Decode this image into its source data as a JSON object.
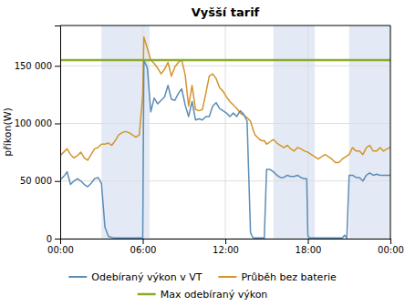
{
  "chart_data": {
    "type": "line",
    "title": "Vyšší tarif",
    "y_label": "příkon(W)",
    "xlim": [
      0,
      288
    ],
    "xticks": [
      {
        "value": 0,
        "label": "00:00"
      },
      {
        "value": 72,
        "label": "06:00"
      },
      {
        "value": 144,
        "label": "12:00"
      },
      {
        "value": 216,
        "label": "18:00"
      },
      {
        "value": 288,
        "label": "00:00"
      }
    ],
    "ylim": [
      0,
      185000
    ],
    "yticks": [
      0,
      {
        "value": 50000,
        "label": "50 000"
      },
      {
        "value": 100000,
        "label": "100 000"
      },
      {
        "value": 150000,
        "label": "150 000"
      }
    ],
    "grid": true,
    "legend": "bottom",
    "shaded_regions": {
      "color": "#ccd9ec",
      "ranges": [
        [
          36,
          78
        ],
        [
          186,
          222
        ],
        [
          252,
          288
        ]
      ]
    },
    "series": [
      {
        "name": "Odebíraný výkon v VT",
        "color": "#5b8db8",
        "x": [
          0,
          4,
          6,
          9,
          12,
          15,
          18,
          21,
          24,
          27,
          30,
          33,
          36,
          39,
          42,
          45,
          48,
          51,
          54,
          57,
          60,
          63,
          66,
          69,
          72,
          73,
          76,
          79,
          82,
          85,
          88,
          91,
          94,
          97,
          100,
          103,
          106,
          109,
          112,
          115,
          118,
          121,
          124,
          127,
          130,
          133,
          136,
          139,
          142,
          145,
          148,
          151,
          154,
          157,
          160,
          163,
          166,
          168,
          170,
          172,
          174,
          176,
          178,
          180,
          183,
          186,
          189,
          192,
          195,
          198,
          201,
          204,
          207,
          210,
          213,
          215,
          216,
          217,
          219,
          222,
          225,
          228,
          231,
          234,
          237,
          240,
          243,
          246,
          248,
          250,
          252,
          255,
          258,
          261,
          264,
          267,
          270,
          273,
          276,
          279,
          282,
          285,
          288
        ],
        "values": [
          51000,
          55000,
          58000,
          47000,
          50000,
          52000,
          50000,
          47000,
          45000,
          48000,
          52000,
          53000,
          48000,
          10000,
          2000,
          1000,
          500,
          500,
          500,
          500,
          500,
          500,
          500,
          500,
          500,
          155000,
          148000,
          110000,
          122000,
          117000,
          120000,
          123000,
          133000,
          121000,
          120000,
          126000,
          130000,
          116000,
          106000,
          119000,
          103000,
          104000,
          103000,
          106000,
          106000,
          115000,
          118000,
          113000,
          111000,
          109000,
          106000,
          109000,
          106000,
          111000,
          108000,
          102000,
          5000,
          1000,
          500,
          500,
          500,
          500,
          500,
          60000,
          60000,
          58000,
          55000,
          53000,
          53000,
          55000,
          54000,
          54000,
          55000,
          53000,
          52000,
          52000,
          3000,
          500,
          500,
          500,
          500,
          500,
          500,
          500,
          500,
          500,
          500,
          500,
          3000,
          500,
          55000,
          55000,
          53000,
          53000,
          50000,
          55000,
          57000,
          55000,
          56000,
          55000,
          55000,
          55000,
          55000
        ]
      },
      {
        "name": "Průběh bez baterie",
        "color": "#d4942a",
        "x": [
          0,
          4,
          6,
          9,
          12,
          15,
          18,
          21,
          24,
          27,
          30,
          33,
          36,
          39,
          42,
          45,
          48,
          51,
          54,
          57,
          60,
          63,
          66,
          69,
          72,
          73,
          76,
          79,
          82,
          85,
          88,
          91,
          94,
          97,
          100,
          103,
          106,
          109,
          112,
          115,
          118,
          121,
          124,
          127,
          130,
          133,
          136,
          139,
          142,
          145,
          148,
          151,
          154,
          157,
          160,
          163,
          166,
          168,
          170,
          172,
          174,
          176,
          178,
          180,
          183,
          186,
          189,
          192,
          195,
          198,
          201,
          204,
          207,
          210,
          213,
          216,
          219,
          222,
          225,
          228,
          231,
          234,
          237,
          240,
          243,
          246,
          249,
          252,
          255,
          258,
          261,
          264,
          267,
          270,
          273,
          276,
          279,
          282,
          285,
          288
        ],
        "values": [
          72000,
          76000,
          78000,
          73000,
          70000,
          72000,
          75000,
          70000,
          68000,
          73000,
          78000,
          79000,
          82000,
          82000,
          83000,
          81000,
          85000,
          90000,
          92000,
          93000,
          92000,
          90000,
          88000,
          90000,
          125000,
          175000,
          165000,
          155000,
          152000,
          148000,
          143000,
          147000,
          153000,
          141000,
          149000,
          153000,
          155000,
          142000,
          115000,
          133000,
          112000,
          111000,
          112000,
          126000,
          141000,
          143000,
          139000,
          131000,
          128000,
          123000,
          119000,
          116000,
          113000,
          109000,
          107000,
          105000,
          102000,
          95000,
          90000,
          88000,
          86000,
          85000,
          85000,
          82000,
          84000,
          86000,
          83000,
          81000,
          79000,
          81000,
          78000,
          76000,
          79000,
          78000,
          76000,
          75000,
          73000,
          71000,
          69000,
          71000,
          73000,
          71000,
          69000,
          66000,
          66000,
          69000,
          71000,
          73000,
          79000,
          76000,
          76000,
          73000,
          79000,
          81000,
          76000,
          76000,
          79000,
          76000,
          78000,
          79000
        ]
      },
      {
        "name": "Max odebíraný výkon",
        "color": "#8aab2c",
        "type": "hline",
        "values": [
          155000
        ]
      }
    ]
  }
}
